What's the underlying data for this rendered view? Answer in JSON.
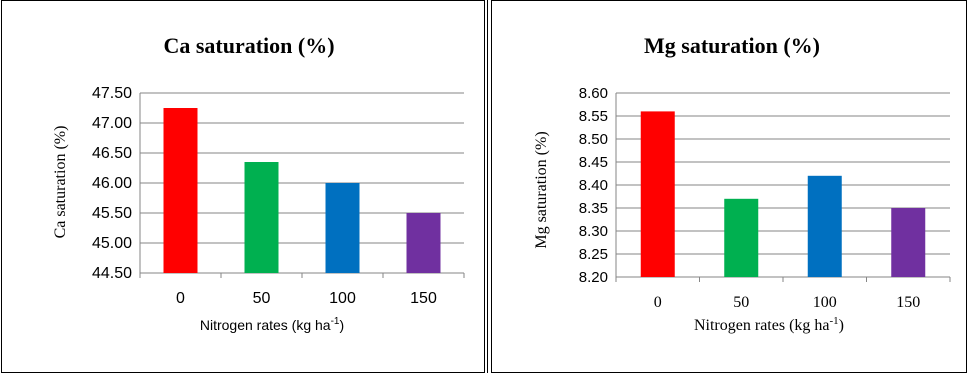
{
  "chart_data": [
    {
      "type": "bar",
      "title": "Ca saturation (%)",
      "ylabel": "Ca saturation (%)",
      "xlabel": "Nitrogen rates (kg ha",
      "xlabel_sup": "-1",
      "xlabel_end": ")",
      "categories": [
        "0",
        "50",
        "100",
        "150"
      ],
      "values": [
        47.25,
        46.35,
        46.0,
        45.5
      ],
      "ylim": [
        44.5,
        47.5
      ],
      "yticks": [
        "44.50",
        "45.00",
        "45.50",
        "46.00",
        "46.50",
        "47.00",
        "47.50"
      ],
      "colors": [
        "#ff0000",
        "#00b050",
        "#0070c0",
        "#7030a0"
      ],
      "grid": true
    },
    {
      "type": "bar",
      "title": "Mg saturation (%)",
      "ylabel": "Mg saturation (%)",
      "xlabel": "Nitrogen rates (kg ha",
      "xlabel_sup": "-1",
      "xlabel_end": ")",
      "categories": [
        "0",
        "50",
        "100",
        "150"
      ],
      "values": [
        8.56,
        8.37,
        8.42,
        8.35
      ],
      "ylim": [
        8.2,
        8.6
      ],
      "yticks": [
        "8.20",
        "8.25",
        "8.30",
        "8.35",
        "8.40",
        "8.45",
        "8.50",
        "8.55",
        "8.60"
      ],
      "colors": [
        "#ff0000",
        "#00b050",
        "#0070c0",
        "#7030a0"
      ],
      "grid": true
    }
  ]
}
